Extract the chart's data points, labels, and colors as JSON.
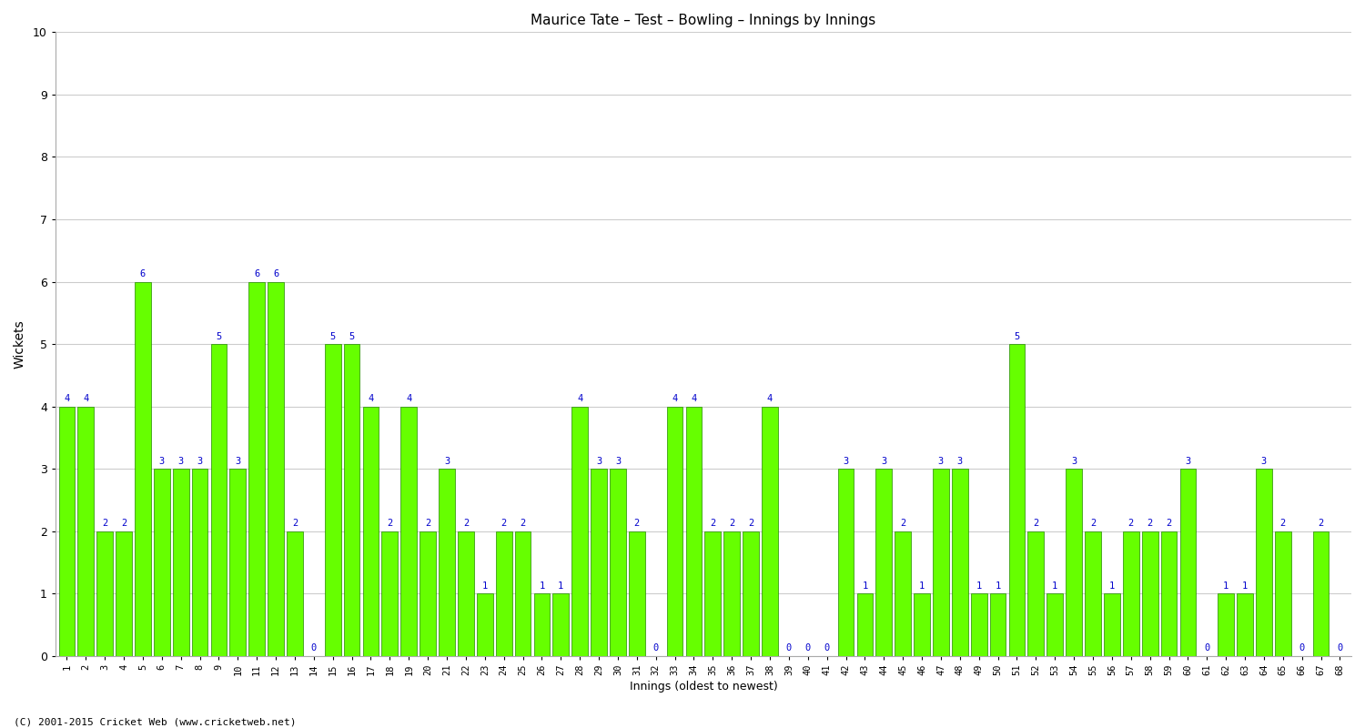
{
  "title": "Maurice Tate – Test – Bowling – Innings by Innings",
  "xlabel": "Innings (oldest to newest)",
  "ylabel": "Wickets",
  "footnote": "(C) 2001-2015 Cricket Web (www.cricketweb.net)",
  "ylim": [
    0,
    10
  ],
  "yticks": [
    0,
    1,
    2,
    3,
    4,
    5,
    6,
    7,
    8,
    9,
    10
  ],
  "bar_color": "#66ff00",
  "bar_edge_color": "#228800",
  "label_color": "#0000cc",
  "categories": [
    "1",
    "2",
    "3",
    "4",
    "5",
    "6",
    "7",
    "8",
    "9",
    "10",
    "11",
    "12",
    "13",
    "14",
    "15",
    "16",
    "17",
    "18",
    "19",
    "20",
    "21",
    "22",
    "23",
    "24",
    "25",
    "26",
    "27",
    "28",
    "29",
    "30",
    "31",
    "32",
    "33",
    "34",
    "35",
    "36",
    "37",
    "38",
    "39",
    "40",
    "41",
    "42",
    "43",
    "44",
    "45",
    "46",
    "47",
    "48",
    "49",
    "50",
    "51",
    "52",
    "53",
    "54",
    "55",
    "56",
    "57",
    "58",
    "59",
    "60",
    "61",
    "62",
    "63",
    "64",
    "65",
    "66",
    "67",
    "68"
  ],
  "values": [
    4,
    4,
    2,
    2,
    6,
    3,
    3,
    3,
    5,
    3,
    6,
    6,
    2,
    0,
    5,
    5,
    4,
    2,
    4,
    2,
    3,
    2,
    1,
    2,
    2,
    1,
    1,
    4,
    3,
    3,
    2,
    0,
    4,
    4,
    2,
    2,
    2,
    4,
    0,
    0,
    0,
    3,
    1,
    3,
    2,
    1,
    3,
    3,
    1,
    1,
    5,
    2,
    1,
    3,
    2,
    1,
    2,
    2,
    2,
    3,
    0,
    1,
    1,
    3,
    2,
    0,
    2,
    0
  ]
}
